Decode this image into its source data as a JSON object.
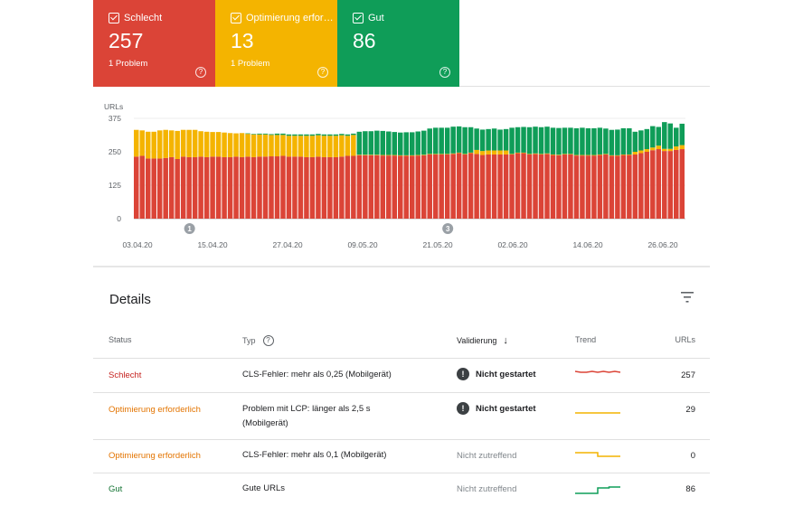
{
  "colors": {
    "bad": "#db4437",
    "warn": "#f4b400",
    "good": "#0f9d58",
    "bad_text": "#c5221f",
    "warn_text": "#e37400",
    "good_text": "#137333"
  },
  "cards": [
    {
      "label": "Schlecht",
      "count": "257",
      "sub": "1 Problem",
      "help": "?"
    },
    {
      "label": "Optimierung erfor…",
      "count": "13",
      "sub": "1 Problem",
      "help": "?"
    },
    {
      "label": "Gut",
      "count": "86",
      "sub": "",
      "help": "?"
    }
  ],
  "chart_data": {
    "type": "bar",
    "stacked": true,
    "ylabel": "URLs",
    "yticks": [
      0,
      125,
      250,
      375
    ],
    "ylim": [
      0,
      375
    ],
    "xtick_labels": [
      "03.04.20",
      "15.04.20",
      "27.04.20",
      "09.05.20",
      "21.05.20",
      "02.06.20",
      "14.06.20",
      "26.06.20"
    ],
    "annotations": [
      {
        "label": "1",
        "bar_index": 9
      },
      {
        "label": "3",
        "bar_index": 53
      }
    ],
    "grid": true,
    "series": [
      {
        "name": "Schlecht",
        "color": "#db4437",
        "values": [
          232,
          235,
          225,
          225,
          225,
          227,
          230,
          223,
          232,
          230,
          230,
          232,
          230,
          232,
          232,
          230,
          230,
          232,
          230,
          232,
          230,
          232,
          232,
          233,
          233,
          235,
          232,
          232,
          232,
          230,
          230,
          232,
          230,
          230,
          230,
          232,
          235,
          235,
          237,
          237,
          237,
          237,
          236,
          236,
          236,
          235,
          235,
          235,
          236,
          237,
          240,
          240,
          240,
          240,
          242,
          245,
          240,
          245,
          242,
          238,
          240,
          240,
          240,
          240,
          240,
          245,
          245,
          240,
          242,
          240,
          242,
          238,
          237,
          240,
          240,
          236,
          236,
          236,
          236,
          238,
          240,
          235,
          235,
          238,
          238,
          240,
          245,
          250,
          256,
          260,
          253,
          253,
          257,
          260
        ]
      },
      {
        "name": "Optimierung erforderlich",
        "color": "#f4b400",
        "values": [
          100,
          95,
          100,
          100,
          105,
          105,
          100,
          105,
          100,
          102,
          102,
          95,
          95,
          92,
          92,
          92,
          90,
          87,
          90,
          85,
          85,
          83,
          83,
          80,
          80,
          78,
          78,
          78,
          78,
          80,
          80,
          80,
          80,
          80,
          80,
          80,
          75,
          78,
          2,
          2,
          2,
          2,
          2,
          2,
          2,
          2,
          2,
          2,
          2,
          2,
          2,
          2,
          2,
          2,
          2,
          2,
          2,
          2,
          15,
          15,
          15,
          15,
          15,
          15,
          2,
          2,
          2,
          2,
          2,
          2,
          2,
          2,
          2,
          2,
          2,
          2,
          2,
          2,
          2,
          2,
          2,
          2,
          2,
          2,
          2,
          10,
          10,
          10,
          10,
          13,
          8,
          8,
          13,
          15
        ]
      },
      {
        "name": "Gut",
        "color": "#0f9d58",
        "values": [
          0,
          0,
          0,
          0,
          0,
          0,
          0,
          0,
          0,
          0,
          0,
          0,
          0,
          0,
          0,
          0,
          0,
          0,
          0,
          2,
          2,
          3,
          3,
          3,
          5,
          5,
          5,
          5,
          5,
          5,
          5,
          5,
          5,
          5,
          5,
          5,
          5,
          5,
          86,
          88,
          88,
          90,
          90,
          88,
          86,
          85,
          86,
          86,
          88,
          90,
          95,
          98,
          98,
          98,
          100,
          98,
          100,
          95,
          80,
          80,
          80,
          82,
          78,
          80,
          98,
          95,
          96,
          100,
          100,
          100,
          100,
          100,
          100,
          98,
          98,
          100,
          102,
          100,
          100,
          100,
          95,
          95,
          96,
          98,
          98,
          75,
          75,
          75,
          80,
          70,
          100,
          95,
          70,
          80
        ]
      }
    ]
  },
  "details": {
    "title": "Details",
    "headers": {
      "status": "Status",
      "typ": "Typ",
      "validierung": "Validierung",
      "trend": "Trend",
      "urls": "URLs"
    },
    "rows": [
      {
        "status": "Schlecht",
        "status_kind": "bad",
        "typ": [
          "CLS-Fehler: mehr als 0,25 (Mobilgerät)"
        ],
        "validierung": "Nicht gestartet",
        "val_icon": "exclamation-icon",
        "urls": "257",
        "trend": [
          8,
          9,
          9,
          8,
          9,
          8,
          9,
          8,
          9
        ]
      },
      {
        "status": "Optimierung erforderlich",
        "status_kind": "warn",
        "typ": [
          "Problem mit LCP: länger als 2,5 s",
          "(Mobilgerät)"
        ],
        "validierung": "Nicht gestartet",
        "val_icon": "exclamation-icon",
        "urls": "29",
        "trend": [
          10,
          10,
          10,
          10,
          10,
          10,
          10,
          10,
          10
        ]
      },
      {
        "status": "Optimierung erforderlich",
        "status_kind": "warn",
        "typ": [
          "CLS-Fehler: mehr als 0,1 (Mobilgerät)"
        ],
        "validierung": "Nicht zutreffend",
        "val_icon": "",
        "urls": "0",
        "trend": [
          8,
          8,
          8,
          8,
          12,
          12,
          12,
          12,
          12
        ]
      },
      {
        "status": "Gut",
        "status_kind": "good",
        "typ": [
          "Gute URLs"
        ],
        "validierung": "Nicht zutreffend",
        "val_icon": "",
        "urls": "86",
        "trend": [
          14,
          14,
          14,
          14,
          8,
          8,
          7,
          7,
          7
        ]
      }
    ]
  }
}
